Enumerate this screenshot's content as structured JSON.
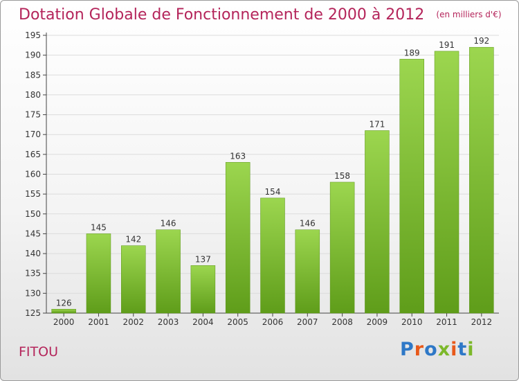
{
  "chart_data": {
    "type": "bar",
    "title": "Dotation Globale de Fonctionnement de 2000 à 2012",
    "subtitle": "(en milliers d'€)",
    "categories": [
      "2000",
      "2001",
      "2002",
      "2003",
      "2004",
      "2005",
      "2006",
      "2007",
      "2008",
      "2009",
      "2010",
      "2011",
      "2012"
    ],
    "values": [
      126,
      145,
      142,
      146,
      137,
      163,
      154,
      146,
      158,
      171,
      189,
      191,
      192
    ],
    "ylim": [
      125,
      195
    ],
    "yticks": [
      125,
      130,
      135,
      140,
      145,
      150,
      155,
      160,
      165,
      170,
      175,
      180,
      185,
      190,
      195
    ],
    "grid": true,
    "bar_color": "#7cc030"
  },
  "footer": {
    "commune": "FITOU",
    "logo_text": "Proxiti"
  }
}
